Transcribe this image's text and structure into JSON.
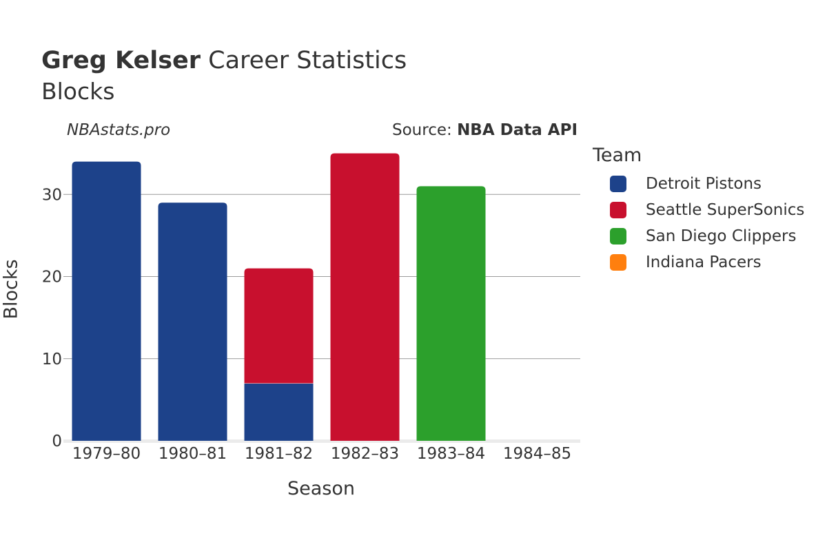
{
  "header": {
    "title_bold": "Greg Kelser",
    "title_rest": " Career Statistics",
    "subtitle": "Blocks",
    "watermark": "NBAstats.pro",
    "source_prefix": "Source: ",
    "source_bold": "NBA Data API"
  },
  "legend": {
    "title": "Team",
    "items": [
      {
        "label": "Detroit Pistons",
        "color": "#1d428a"
      },
      {
        "label": "Seattle SuperSonics",
        "color": "#c8102e"
      },
      {
        "label": "San Diego Clippers",
        "color": "#2ca02c"
      },
      {
        "label": "Indiana Pacers",
        "color": "#ff7f0e"
      }
    ]
  },
  "chart_data": {
    "type": "bar",
    "stacked": true,
    "xlabel": "Season",
    "ylabel": "Blocks",
    "ylim": [
      0,
      35
    ],
    "yticks": [
      0,
      10,
      20,
      30
    ],
    "grid": true,
    "legend_position": "right",
    "categories": [
      "1979–80",
      "1980–81",
      "1981–82",
      "1982–83",
      "1983–84",
      "1984–85"
    ],
    "series": [
      {
        "name": "Detroit Pistons",
        "color": "#1d428a",
        "values": [
          34,
          29,
          7,
          0,
          0,
          0
        ]
      },
      {
        "name": "Seattle SuperSonics",
        "color": "#c8102e",
        "values": [
          0,
          0,
          14,
          35,
          0,
          0
        ]
      },
      {
        "name": "San Diego Clippers",
        "color": "#2ca02c",
        "values": [
          0,
          0,
          0,
          0,
          31,
          0
        ]
      },
      {
        "name": "Indiana Pacers",
        "color": "#ff7f0e",
        "values": [
          0,
          0,
          0,
          0,
          0,
          0
        ]
      }
    ]
  }
}
